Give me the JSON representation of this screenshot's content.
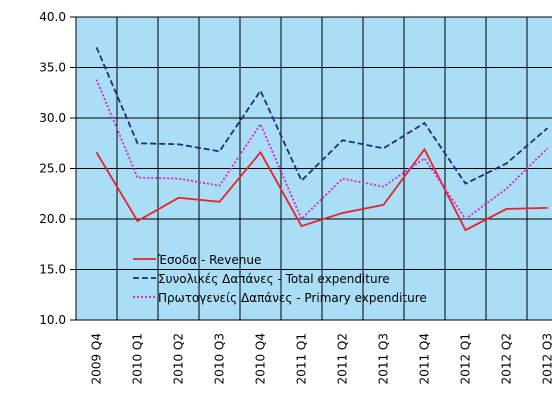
{
  "chart_data": {
    "type": "line",
    "categories": [
      "2009 Q4",
      "2010 Q1",
      "2010 Q2",
      "2010 Q3",
      "2010 Q4",
      "2011 Q1",
      "2011 Q2",
      "2011 Q3",
      "2011 Q4",
      "2012 Q1",
      "2012 Q2",
      "2012 Q3"
    ],
    "series": [
      {
        "name": "Έσοδα - Revenue",
        "color": "#e8212a",
        "dash": "solid",
        "values": [
          26.6,
          19.8,
          22.1,
          21.7,
          26.6,
          19.3,
          20.6,
          21.4,
          26.9,
          18.9,
          21.0,
          21.1
        ]
      },
      {
        "name": "Συνολικές Δαπάνες - Total expenditure",
        "color": "#1f2d7a",
        "dash": "dashed",
        "values": [
          37.0,
          27.5,
          27.4,
          26.7,
          32.7,
          23.8,
          27.8,
          27.0,
          29.5,
          23.5,
          25.5,
          29.0
        ]
      },
      {
        "name": "Πρωτογενείς Δαπάνες - Primary expenditure",
        "color": "#e020c8",
        "dash": "dotted",
        "values": [
          33.8,
          24.1,
          24.0,
          23.3,
          29.4,
          20.0,
          24.0,
          23.2,
          26.0,
          20.0,
          23.0,
          27.0
        ]
      }
    ],
    "ylim": [
      10,
      40
    ],
    "yticks": [
      {
        "value": 10,
        "label": "10.0"
      },
      {
        "value": 15,
        "label": "15.0"
      },
      {
        "value": 20,
        "label": "20.0"
      },
      {
        "value": 25,
        "label": "25.0"
      },
      {
        "value": 30,
        "label": "30.0"
      },
      {
        "value": 35,
        "label": "35.0"
      },
      {
        "value": 40,
        "label": "40.0"
      }
    ],
    "grid": true,
    "legend": "lower left"
  }
}
